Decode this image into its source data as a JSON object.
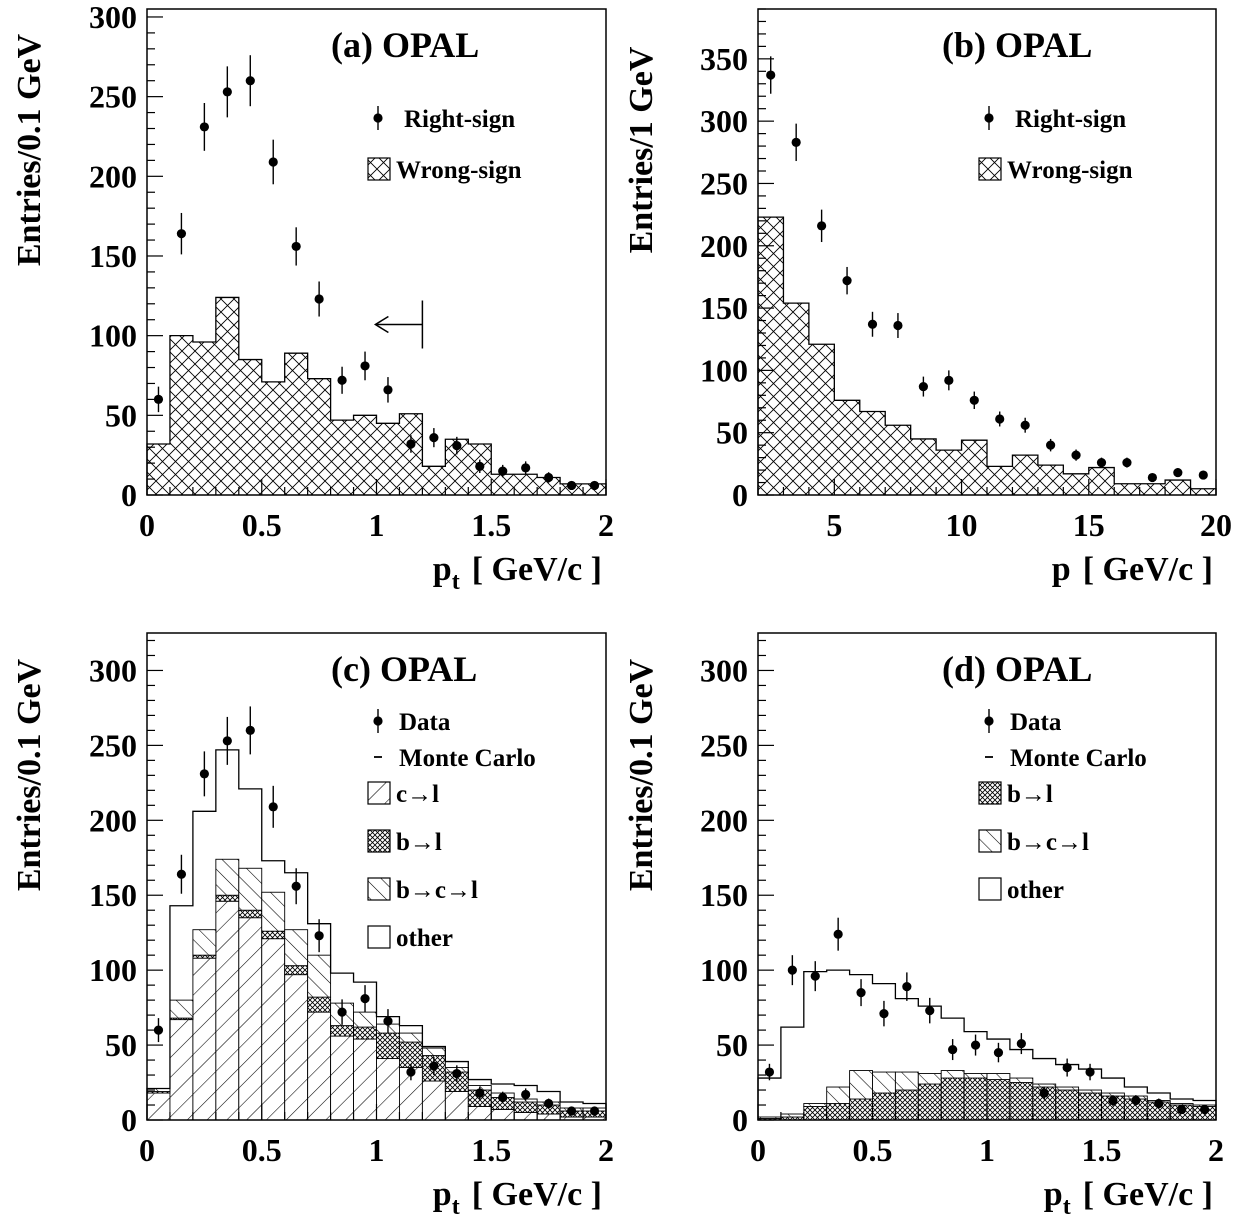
{
  "chart_data": [
    {
      "panel": "(a)",
      "title": "OPAL",
      "type": "histogram+points",
      "xlabel": {
        "main": "p",
        "sub": "t",
        "unit": "[ GeV/c ]"
      },
      "ylabel": "Entries/0.1 GeV",
      "xlim": [
        0,
        2
      ],
      "ylim": [
        0,
        305
      ],
      "xticks": [
        0,
        0.5,
        1,
        1.5,
        2
      ],
      "xtick_labels": [
        "0",
        "0.5",
        "1",
        "1.5",
        "2"
      ],
      "yticks": [
        0,
        50,
        100,
        150,
        200,
        250,
        300
      ],
      "ytick_labels": [
        "0",
        "50",
        "100",
        "150",
        "200",
        "250",
        "300"
      ],
      "legend": [
        {
          "kind": "points",
          "label": "Right-sign"
        },
        {
          "kind": "crosshatch",
          "label": "Wrong-sign"
        }
      ],
      "cut_arrow": {
        "x": 1.2
      },
      "points": {
        "name": "Right-sign",
        "x": [
          0.05,
          0.15,
          0.25,
          0.35,
          0.45,
          0.55,
          0.65,
          0.75,
          0.85,
          0.95,
          1.05,
          1.15,
          1.25,
          1.35,
          1.45,
          1.55,
          1.65,
          1.75,
          1.85,
          1.95
        ],
        "y": [
          60,
          164,
          231,
          253,
          260,
          209,
          156,
          123,
          72,
          81,
          66,
          32,
          36,
          31,
          18,
          15,
          17,
          11,
          6,
          6
        ],
        "err": [
          8,
          13,
          15,
          16,
          16,
          14,
          12,
          11,
          8.5,
          9,
          8,
          5.5,
          6,
          5.5,
          4.2,
          3.9,
          4.1,
          3.3,
          2.5,
          2.5
        ]
      },
      "histograms": [
        {
          "name": "Wrong-sign",
          "fill": "crosshatch",
          "edges": [
            0,
            0.1,
            0.2,
            0.3,
            0.4,
            0.5,
            0.6,
            0.7,
            0.8,
            0.9,
            1.0,
            1.1,
            1.2,
            1.3,
            1.4,
            1.5,
            1.6,
            1.7,
            1.8,
            1.9,
            2.0
          ],
          "values": [
            32,
            100,
            96,
            124,
            85,
            71,
            89,
            73,
            47,
            50,
            45,
            51,
            18,
            35,
            32,
            13,
            13,
            11,
            7,
            7
          ]
        }
      ]
    },
    {
      "panel": "(b)",
      "title": "OPAL",
      "type": "histogram+points",
      "xlabel": {
        "main": "p",
        "sub": "",
        "unit": "[ GeV/c ]"
      },
      "ylabel": "Entries/1 GeV",
      "xlim": [
        2,
        20
      ],
      "ylim": [
        0,
        390
      ],
      "xticks": [
        5,
        10,
        15,
        20
      ],
      "xtick_labels": [
        "5",
        "10",
        "15",
        "20"
      ],
      "yticks": [
        0,
        50,
        100,
        150,
        200,
        250,
        300,
        350
      ],
      "ytick_labels": [
        "0",
        "50",
        "100",
        "150",
        "200",
        "250",
        "300",
        "350"
      ],
      "legend": [
        {
          "kind": "points",
          "label": "Right-sign"
        },
        {
          "kind": "crosshatch",
          "label": "Wrong-sign"
        }
      ],
      "points": {
        "name": "Right-sign",
        "x": [
          2.5,
          3.5,
          4.5,
          5.5,
          6.5,
          7.5,
          8.5,
          9.5,
          10.5,
          11.5,
          12.5,
          13.5,
          14.5,
          15.5,
          16.5,
          17.5,
          18.5,
          19.5
        ],
        "y": [
          337,
          283,
          216,
          172,
          137,
          136,
          87,
          92,
          76,
          61,
          56,
          40,
          32,
          26,
          26,
          14,
          18,
          16
        ],
        "err": [
          15,
          15,
          13,
          11,
          10,
          10,
          8,
          8,
          7,
          6,
          6,
          5,
          4.5,
          4,
          4,
          3.2,
          3.6,
          3.4
        ]
      },
      "histograms": [
        {
          "name": "Wrong-sign",
          "fill": "crosshatch",
          "edges": [
            2,
            3,
            4,
            5,
            6,
            7,
            8,
            9,
            10,
            11,
            12,
            13,
            14,
            15,
            16,
            17,
            18,
            19,
            20
          ],
          "values": [
            223,
            154,
            121,
            76,
            67,
            56,
            45,
            36,
            44,
            23,
            32,
            24,
            17,
            22,
            9,
            9,
            12,
            5
          ]
        }
      ]
    },
    {
      "panel": "(c)",
      "title": "OPAL",
      "type": "stacked-histogram+points",
      "xlabel": {
        "main": "p",
        "sub": "t",
        "unit": "[ GeV/c ]"
      },
      "ylabel": "Entries/0.1 GeV",
      "xlim": [
        0,
        2
      ],
      "ylim": [
        0,
        325
      ],
      "xticks": [
        0,
        0.5,
        1,
        1.5,
        2
      ],
      "xtick_labels": [
        "0",
        "0.5",
        "1",
        "1.5",
        "2"
      ],
      "yticks": [
        0,
        50,
        100,
        150,
        200,
        250,
        300
      ],
      "ytick_labels": [
        "0",
        "50",
        "100",
        "150",
        "200",
        "250",
        "300"
      ],
      "legend": [
        {
          "kind": "points",
          "label": "Data"
        },
        {
          "kind": "line",
          "label": "Monte Carlo"
        },
        {
          "kind": "hatch-down",
          "label": "c→l"
        },
        {
          "kind": "crosshatch-dense",
          "label": "b→l"
        },
        {
          "kind": "hatch-up",
          "label": "b→c→l"
        },
        {
          "kind": "empty",
          "label": "other"
        }
      ],
      "points": {
        "name": "Data",
        "x": [
          0.05,
          0.15,
          0.25,
          0.35,
          0.45,
          0.55,
          0.65,
          0.75,
          0.85,
          0.95,
          1.05,
          1.15,
          1.25,
          1.35,
          1.45,
          1.55,
          1.65,
          1.75,
          1.85,
          1.95
        ],
        "y": [
          60,
          164,
          231,
          253,
          260,
          209,
          156,
          123,
          72,
          81,
          66,
          32,
          36,
          31,
          18,
          15,
          17,
          11,
          6,
          6
        ],
        "err": [
          8,
          13,
          15,
          16,
          16,
          14,
          12,
          11,
          8.5,
          9,
          8,
          5.5,
          6,
          5.5,
          4.2,
          3.9,
          4.1,
          3.3,
          2.5,
          2.5
        ]
      },
      "edges": [
        0,
        0.1,
        0.2,
        0.3,
        0.4,
        0.5,
        0.6,
        0.7,
        0.8,
        0.9,
        1.0,
        1.1,
        1.2,
        1.3,
        1.4,
        1.5,
        1.6,
        1.7,
        1.8,
        1.9,
        2.0
      ],
      "stack": [
        {
          "name": "c→l",
          "fill": "hatch-down",
          "values": [
            18,
            67,
            108,
            146,
            135,
            121,
            97,
            72,
            56,
            54,
            41,
            35,
            26,
            19,
            9,
            7,
            5,
            4,
            2,
            2
          ]
        },
        {
          "name": "b→l",
          "fill": "crosshatch-dense",
          "values": [
            1,
            1,
            2,
            4,
            5,
            5,
            6,
            10,
            7,
            8,
            17,
            17,
            17,
            13,
            11,
            8,
            7,
            6,
            4,
            4
          ]
        },
        {
          "name": "b→c→l",
          "fill": "hatch-up",
          "values": [
            2,
            12,
            17,
            24,
            28,
            26,
            24,
            28,
            15,
            10,
            6,
            6,
            5,
            3,
            3,
            3,
            2,
            2,
            2,
            2
          ]
        },
        {
          "name": "other",
          "fill": "none",
          "values": [
            0,
            0,
            0,
            0,
            0,
            0,
            0,
            0,
            0,
            0,
            0,
            0,
            0,
            0,
            0,
            0,
            0,
            0,
            0,
            0
          ]
        }
      ],
      "mc_total": [
        21,
        143,
        206,
        247,
        221,
        173,
        165,
        131,
        98,
        92,
        69,
        63,
        49,
        39,
        27,
        24,
        23,
        19,
        12,
        11
      ]
    },
    {
      "panel": "(d)",
      "title": "OPAL",
      "type": "stacked-histogram+points",
      "xlabel": {
        "main": "p",
        "sub": "t",
        "unit": "[ GeV/c ]"
      },
      "ylabel": "Entries/0.1 GeV",
      "xlim": [
        0,
        2
      ],
      "ylim": [
        0,
        325
      ],
      "xticks": [
        0,
        0.5,
        1,
        1.5,
        2
      ],
      "xtick_labels": [
        "0",
        "0.5",
        "1",
        "1.5",
        "2"
      ],
      "yticks": [
        0,
        50,
        100,
        150,
        200,
        250,
        300
      ],
      "ytick_labels": [
        "0",
        "50",
        "100",
        "150",
        "200",
        "250",
        "300"
      ],
      "legend": [
        {
          "kind": "points",
          "label": "Data"
        },
        {
          "kind": "line",
          "label": "Monte Carlo"
        },
        {
          "kind": "crosshatch-dense",
          "label": "b→l"
        },
        {
          "kind": "hatch-up",
          "label": "b→c→l"
        },
        {
          "kind": "empty",
          "label": "other"
        }
      ],
      "points": {
        "name": "Data",
        "x": [
          0.05,
          0.15,
          0.25,
          0.35,
          0.45,
          0.55,
          0.65,
          0.75,
          0.85,
          0.95,
          1.05,
          1.15,
          1.25,
          1.35,
          1.45,
          1.55,
          1.65,
          1.75,
          1.85,
          1.95
        ],
        "y": [
          32,
          100,
          96,
          124,
          85,
          71,
          89,
          73,
          47,
          50,
          45,
          51,
          18,
          35,
          32,
          13,
          13,
          11,
          7,
          7
        ],
        "err": [
          5.5,
          10,
          10,
          11,
          9,
          8.5,
          9.5,
          8.5,
          7,
          7,
          6.5,
          7,
          4.3,
          6,
          5.5,
          3.6,
          3.6,
          3.3,
          2.6,
          2.6
        ]
      },
      "edges": [
        0,
        0.1,
        0.2,
        0.3,
        0.4,
        0.5,
        0.6,
        0.7,
        0.8,
        0.9,
        1.0,
        1.1,
        1.2,
        1.3,
        1.4,
        1.5,
        1.6,
        1.7,
        1.8,
        1.9,
        2.0
      ],
      "stack": [
        {
          "name": "b→l",
          "fill": "crosshatch-dense",
          "values": [
            1,
            2,
            9,
            11,
            14,
            18,
            20,
            24,
            28,
            28,
            27,
            25,
            22,
            20,
            18,
            16,
            14,
            12,
            10,
            9
          ]
        },
        {
          "name": "b→c→l",
          "fill": "hatch-up",
          "values": [
            1,
            2,
            2,
            11,
            19,
            14,
            12,
            7,
            5,
            3,
            4,
            3,
            2,
            2,
            2,
            2,
            2,
            1,
            1,
            1
          ]
        },
        {
          "name": "other",
          "fill": "none",
          "values": [
            0,
            0,
            0,
            0,
            0,
            0,
            0,
            0,
            0,
            0,
            0,
            0,
            0,
            0,
            0,
            0,
            0,
            0,
            0,
            0
          ]
        }
      ],
      "mc_total": [
        28,
        62,
        99,
        100,
        97,
        91,
        81,
        76,
        68,
        59,
        54,
        47,
        41,
        37,
        34,
        28,
        22,
        18,
        14,
        13
      ]
    }
  ]
}
